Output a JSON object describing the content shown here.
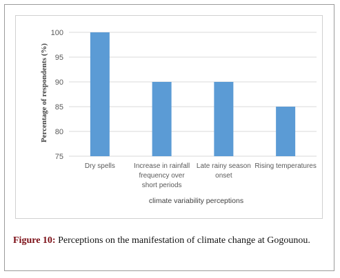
{
  "figure": {
    "caption_label": "Figure 10:",
    "caption_text": " Perceptions on the manifestation of climate change at Gogounou."
  },
  "chart_data": {
    "type": "bar",
    "categories": [
      [
        "Dry spells"
      ],
      [
        "Increase in rainfall",
        "frequency over",
        "short periods"
      ],
      [
        "Late rainy season",
        "onset"
      ],
      [
        "Rising temperatures"
      ]
    ],
    "values": [
      100,
      90,
      90,
      85
    ],
    "title": "",
    "xlabel": "climate variability perceptions",
    "ylabel": "Percentage of respondents  (%)",
    "ylim": [
      75,
      100
    ],
    "yticks": [
      75,
      80,
      85,
      90,
      95,
      100
    ],
    "grid": true,
    "legend": "none",
    "colors": {
      "bar": "#5b9bd5",
      "grid": "#d9d9d9",
      "text": "#595959"
    }
  }
}
